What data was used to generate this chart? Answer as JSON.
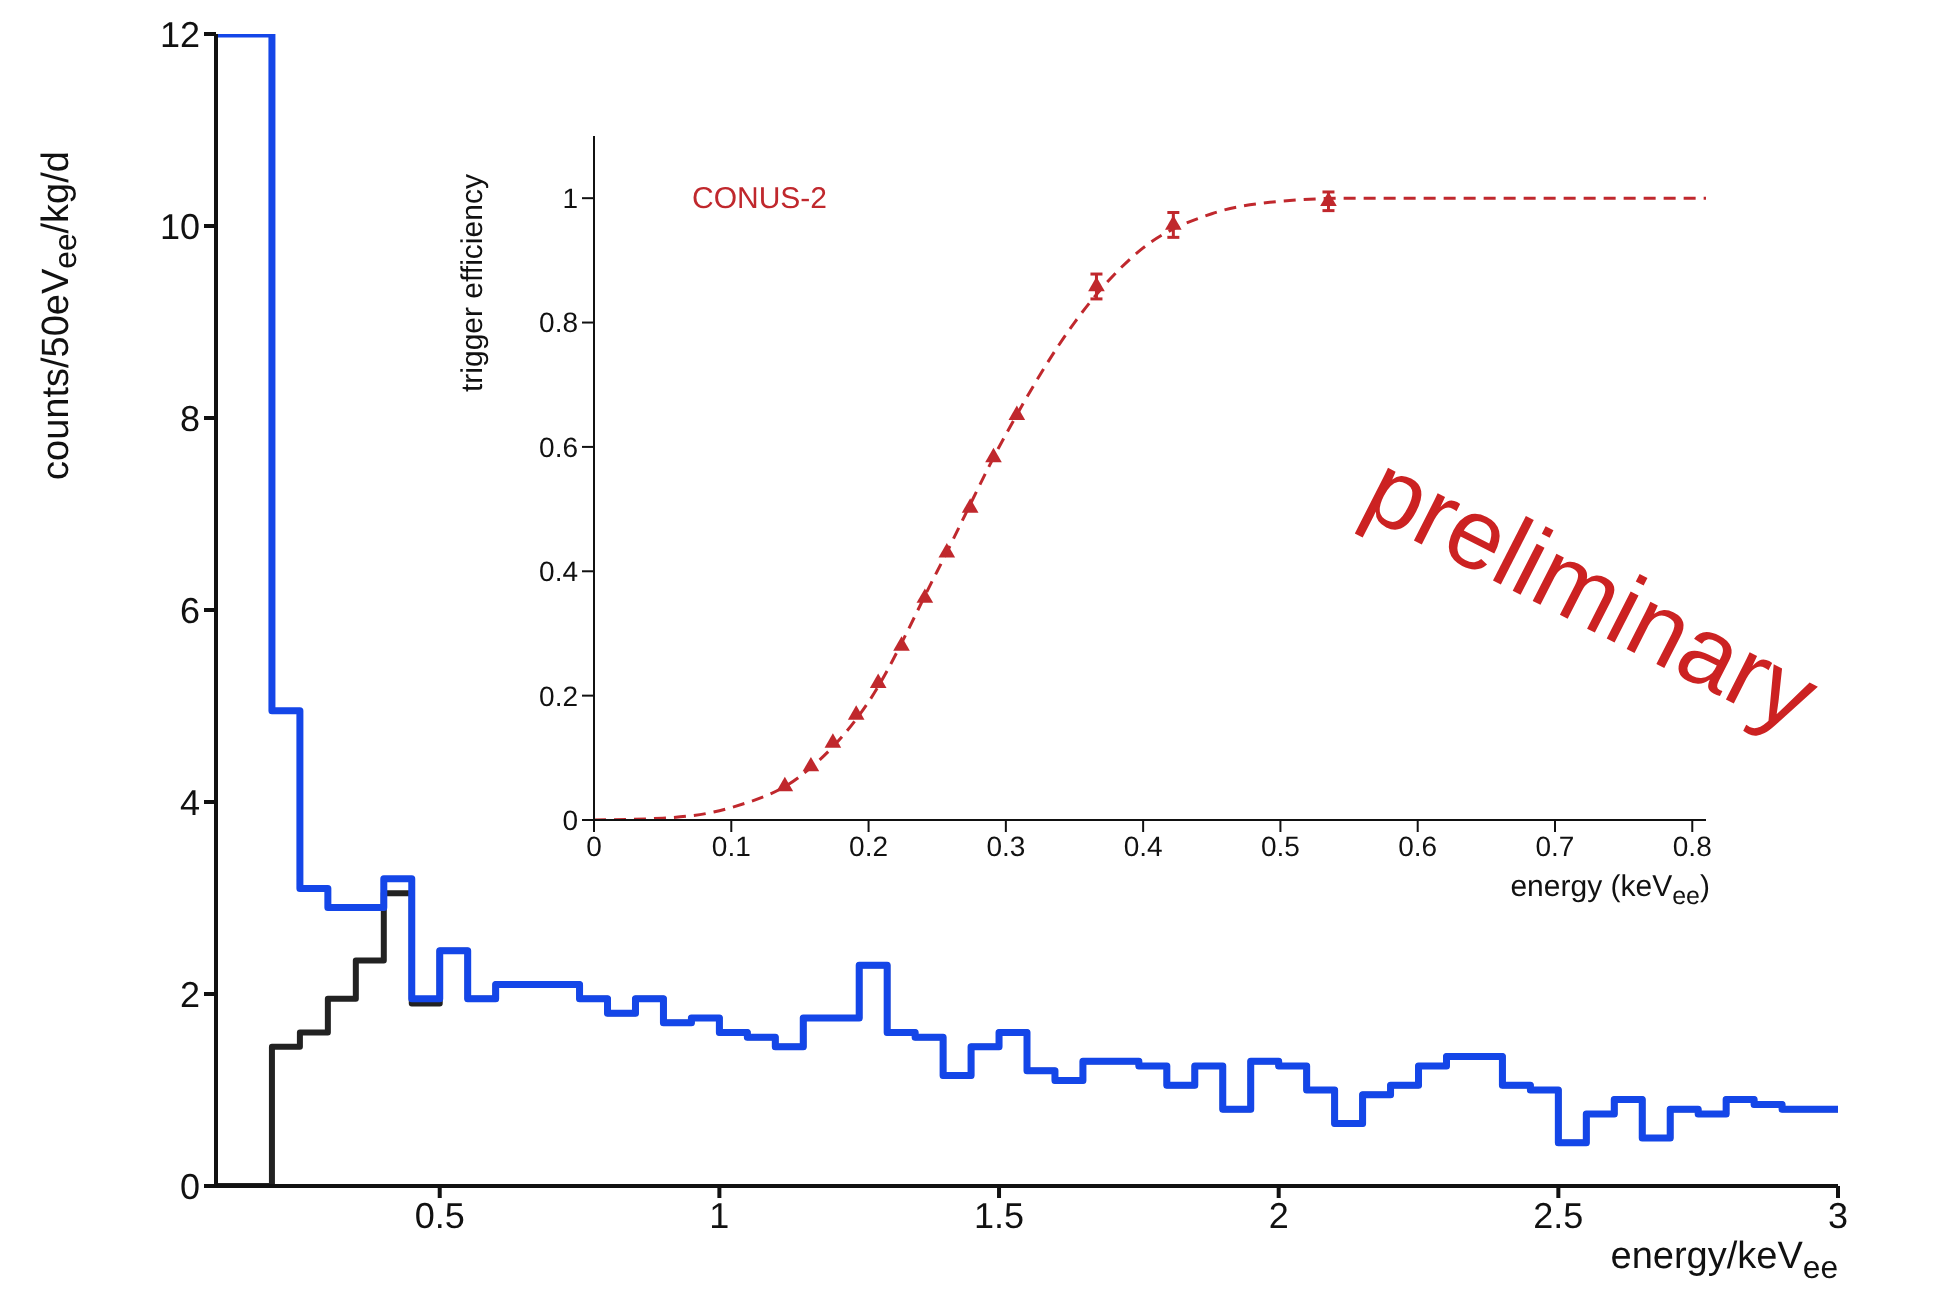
{
  "chart_data": [
    {
      "type": "histogram",
      "xlabel": "energy/keV$_{ee}$",
      "ylabel": "counts/50eV$_{ee}$/kg/d",
      "bins": [
        0.1,
        0.15,
        0.2,
        0.25,
        0.3,
        0.35,
        0.4,
        0.45,
        0.5,
        0.55,
        0.6,
        0.65,
        0.7,
        0.75,
        0.8,
        0.85,
        0.9,
        0.95,
        1,
        1.05,
        1.1,
        1.15,
        1.2,
        1.25,
        1.3,
        1.35,
        1.4,
        1.45,
        1.5,
        1.55,
        1.6,
        1.65,
        1.7,
        1.75,
        1.8,
        1.85,
        1.9,
        1.95,
        2,
        2.05,
        2.1,
        2.15,
        2.2,
        2.25,
        2.3,
        2.35,
        2.4,
        2.45,
        2.5,
        2.55,
        2.6,
        2.65,
        2.7,
        2.75,
        2.8,
        2.85,
        2.9,
        2.95,
        3
      ],
      "series": [
        {
          "color": "#1446e8",
          "values": [
            12,
            12,
            4.95,
            3.1,
            2.9,
            2.9,
            3.2,
            1.95,
            2.45,
            1.95,
            2.1,
            2.1,
            2.1,
            1.95,
            1.8,
            1.95,
            1.7,
            1.75,
            1.6,
            1.55,
            1.45,
            1.75,
            1.75,
            2.3,
            1.6,
            1.55,
            1.15,
            1.45,
            1.6,
            1.2,
            1.1,
            1.3,
            1.3,
            1.25,
            1.05,
            1.25,
            0.8,
            1.3,
            1.25,
            1.0,
            0.65,
            0.95,
            1.05,
            1.25,
            1.35,
            1.35,
            1.05,
            1.0,
            0.45,
            0.75,
            0.9,
            0.5,
            0.8,
            0.75,
            0.9,
            0.85,
            0.8,
            0.8
          ]
        },
        {
          "color": "#222222",
          "values": [
            0,
            0,
            1.45,
            1.6,
            1.95,
            2.35,
            3.05,
            1.9,
            2.45,
            1.95,
            2.1,
            2.1,
            2.1,
            1.95,
            1.8,
            1.95,
            1.7,
            1.75,
            1.6,
            1.55,
            1.45,
            1.75,
            1.75,
            2.3,
            1.6,
            1.55,
            1.15,
            1.45,
            1.6,
            1.2,
            1.1,
            1.3,
            1.3,
            1.25,
            1.05,
            1.25,
            0.8,
            1.3,
            1.25,
            1.0,
            0.65,
            0.95,
            1.05,
            1.25,
            1.35,
            1.35,
            1.05,
            1.0,
            0.45,
            0.75,
            0.9,
            0.5,
            0.8,
            0.75,
            0.9,
            0.85,
            0.8,
            0.8
          ]
        }
      ],
      "xlim": [
        0.1,
        3
      ],
      "ylim": [
        0,
        12
      ],
      "xticks": [
        0.5,
        1,
        1.5,
        2,
        2.5,
        3
      ],
      "yticks": [
        0,
        2,
        4,
        6,
        8,
        10,
        12
      ],
      "annotations": [
        "preliminary"
      ]
    },
    {
      "type": "scatter",
      "xlabel": "energy (keV$_{ee}$)",
      "ylabel": "trigger efficiency",
      "series": [
        {
          "color": "#c0282d",
          "marker": "triangle",
          "x": [
            0.139,
            0.158,
            0.174,
            0.191,
            0.207,
            0.224,
            0.241,
            0.257,
            0.274,
            0.291,
            0.308,
            0.366,
            0.422,
            0.535
          ],
          "values": [
            0.054,
            0.086,
            0.124,
            0.169,
            0.22,
            0.28,
            0.357,
            0.43,
            0.502,
            0.583,
            0.651,
            0.858,
            0.957,
            0.995
          ],
          "errors": [
            null,
            null,
            null,
            null,
            null,
            null,
            null,
            null,
            null,
            null,
            null,
            0.02,
            0.02,
            0.015
          ]
        },
        {
          "type": "line",
          "line_style": "dashed",
          "color": "#c0282d",
          "x": [
            0,
            0.05,
            0.1,
            0.15,
            0.2,
            0.25,
            0.3,
            0.35,
            0.4,
            0.45,
            0.5,
            0.55,
            0.6,
            0.81
          ],
          "values": [
            0,
            0.003,
            0.02,
            0.07,
            0.19,
            0.4,
            0.62,
            0.8,
            0.92,
            0.975,
            0.995,
            1,
            1,
            1
          ]
        }
      ],
      "xlim": [
        0,
        0.81
      ],
      "ylim": [
        0,
        1.1
      ],
      "xticks": [
        0,
        0.1,
        0.2,
        0.3,
        0.4,
        0.5,
        0.6,
        0.7,
        0.8
      ],
      "yticks": [
        0,
        0.2,
        0.4,
        0.6,
        0.8,
        1
      ],
      "annotations": [
        "CONUS-2"
      ]
    }
  ]
}
